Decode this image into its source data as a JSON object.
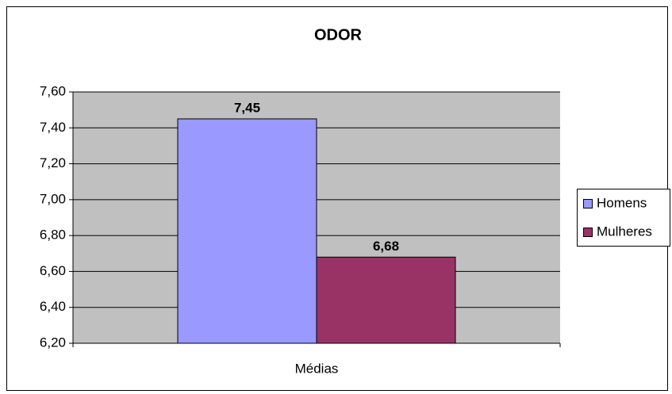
{
  "chart_data": {
    "type": "bar",
    "title": "ODOR",
    "categories": [
      "Médias"
    ],
    "series": [
      {
        "name": "Homens",
        "color": "#9999ff",
        "values": [
          7.45
        ],
        "value_labels": [
          "7,45"
        ]
      },
      {
        "name": "Mulheres",
        "color": "#993366",
        "values": [
          6.68
        ],
        "value_labels": [
          "6,68"
        ]
      }
    ],
    "ylim": [
      6.2,
      7.6
    ],
    "yticks": [
      {
        "value": 6.2,
        "label": "6,20"
      },
      {
        "value": 6.4,
        "label": "6,40"
      },
      {
        "value": 6.6,
        "label": "6,60"
      },
      {
        "value": 6.8,
        "label": "6,80"
      },
      {
        "value": 7.0,
        "label": "7,00"
      },
      {
        "value": 7.2,
        "label": "7,20"
      },
      {
        "value": 7.4,
        "label": "7,40"
      },
      {
        "value": 7.6,
        "label": "7,60"
      }
    ],
    "grid": true,
    "legend": "right"
  }
}
